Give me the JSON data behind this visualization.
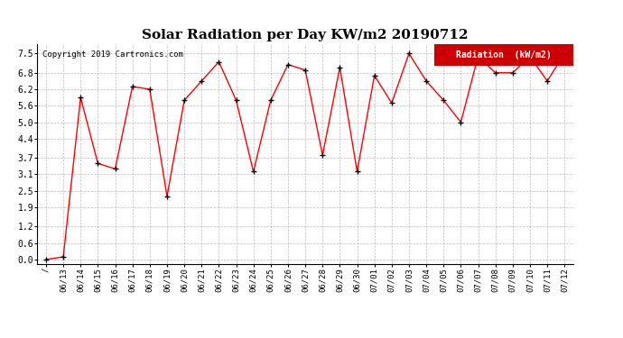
{
  "title": "Solar Radiation per Day KW/m2 20190712",
  "copyright_text": "Copyright 2019 Cartronics.com",
  "legend_label": "Radiation  (kW/m2)",
  "dates": [
    "/",
    "06/13",
    "06/14",
    "06/15",
    "06/16",
    "06/17",
    "06/18",
    "06/19",
    "06/20",
    "06/21",
    "06/22",
    "06/23",
    "06/24",
    "06/25",
    "06/26",
    "06/27",
    "06/28",
    "06/29",
    "06/30",
    "07/01",
    "07/02",
    "07/03",
    "07/04",
    "07/05",
    "07/06",
    "07/07",
    "07/08",
    "07/09",
    "07/10",
    "07/11",
    "07/12"
  ],
  "values": [
    0.0,
    0.1,
    5.9,
    3.5,
    3.3,
    6.3,
    6.2,
    2.3,
    5.8,
    6.5,
    7.2,
    5.8,
    3.2,
    5.8,
    7.1,
    6.9,
    3.8,
    7.0,
    3.2,
    6.7,
    5.7,
    7.5,
    6.5,
    5.8,
    5.0,
    7.4,
    6.8,
    6.8,
    7.4,
    6.5,
    7.5
  ],
  "line_color": "#ff0000",
  "marker_color": "#000000",
  "bg_color": "#ffffff",
  "grid_color": "#aaaaaa",
  "yticks": [
    0.0,
    0.6,
    1.2,
    1.9,
    2.5,
    3.1,
    3.7,
    4.4,
    5.0,
    5.6,
    6.2,
    6.8,
    7.5
  ],
  "ylim": [
    -0.15,
    7.85
  ],
  "title_fontsize": 11,
  "legend_bg": "#cc0000",
  "legend_text_color": "#ffffff"
}
